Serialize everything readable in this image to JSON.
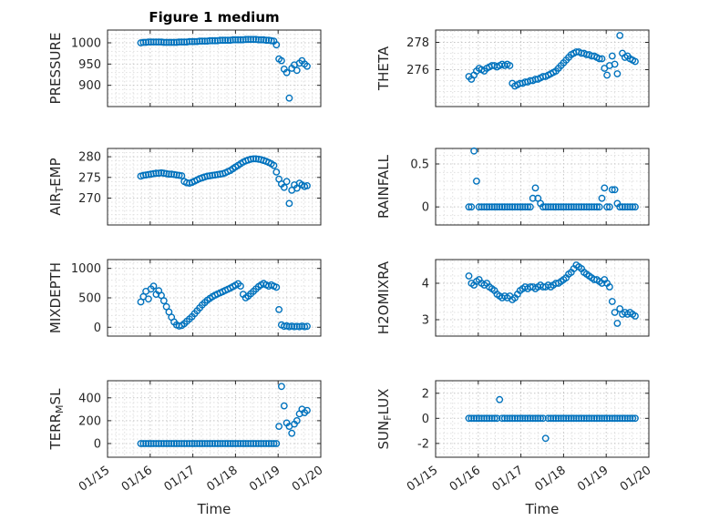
{
  "figure": {
    "title": "Figure 1 medium",
    "xlabel": "Time",
    "marker_color": "#0072BD",
    "axis_color": "#262626",
    "major_grid_color": "#c4c4c4",
    "minor_grid_color": "#e0e0e0",
    "xlim": [
      15,
      20
    ],
    "xticks": [
      15,
      16,
      17,
      18,
      19,
      20
    ],
    "xtick_labels": [
      "01/15",
      "01/16",
      "01/17",
      "01/18",
      "01/19",
      "01/20"
    ]
  },
  "chart_data": [
    {
      "name": "PRESSURE",
      "type": "scatter",
      "ylabel": [
        {
          "t": "PRESSURE"
        }
      ],
      "ylim": [
        850,
        1030
      ],
      "yticks": [
        900,
        950,
        1000
      ],
      "x": [
        15.78,
        15.84,
        15.9,
        15.96,
        16.02,
        16.08,
        16.14,
        16.2,
        16.26,
        16.32,
        16.38,
        16.44,
        16.5,
        16.56,
        16.62,
        16.68,
        16.74,
        16.8,
        16.86,
        16.92,
        16.98,
        17.04,
        17.1,
        17.16,
        17.22,
        17.28,
        17.34,
        17.4,
        17.46,
        17.52,
        17.58,
        17.64,
        17.7,
        17.76,
        17.82,
        17.88,
        17.94,
        18.0,
        18.06,
        18.12,
        18.18,
        18.24,
        18.3,
        18.36,
        18.42,
        18.48,
        18.54,
        18.6,
        18.66,
        18.72,
        18.78,
        18.84,
        18.9,
        18.96,
        19.02,
        19.08,
        19.14,
        19.2,
        19.26,
        19.32,
        19.38,
        19.44,
        19.5,
        19.56,
        19.62,
        19.68
      ],
      "y": [
        1000,
        1001,
        1001,
        1002,
        1002,
        1002,
        1002,
        1002,
        1002,
        1001,
        1001,
        1001,
        1001,
        1001,
        1001,
        1002,
        1002,
        1002,
        1002,
        1003,
        1003,
        1003,
        1003,
        1004,
        1004,
        1004,
        1004,
        1005,
        1005,
        1005,
        1005,
        1006,
        1006,
        1006,
        1006,
        1006,
        1007,
        1007,
        1007,
        1007,
        1007,
        1008,
        1008,
        1008,
        1008,
        1008,
        1007,
        1007,
        1007,
        1006,
        1006,
        1005,
        1004,
        995,
        962,
        958,
        938,
        930,
        870,
        940,
        948,
        935,
        952,
        958,
        950,
        945
      ]
    },
    {
      "name": "AIRTEMP",
      "type": "scatter",
      "ylabel": [
        {
          "t": "AIR"
        },
        {
          "t": "T",
          "sub": true
        },
        {
          "t": "EMP"
        }
      ],
      "ylim": [
        263.5,
        282
      ],
      "yticks": [
        270,
        275,
        280
      ],
      "x": [
        15.78,
        15.84,
        15.9,
        15.96,
        16.02,
        16.08,
        16.14,
        16.2,
        16.26,
        16.32,
        16.38,
        16.44,
        16.5,
        16.56,
        16.62,
        16.68,
        16.74,
        16.8,
        16.86,
        16.92,
        16.98,
        17.04,
        17.1,
        17.16,
        17.22,
        17.28,
        17.34,
        17.4,
        17.46,
        17.52,
        17.58,
        17.64,
        17.7,
        17.76,
        17.82,
        17.88,
        17.94,
        18.0,
        18.06,
        18.12,
        18.18,
        18.24,
        18.3,
        18.36,
        18.42,
        18.48,
        18.54,
        18.6,
        18.66,
        18.72,
        18.78,
        18.84,
        18.9,
        18.96,
        19.02,
        19.08,
        19.14,
        19.2,
        19.26,
        19.32,
        19.38,
        19.44,
        19.5,
        19.56,
        19.62,
        19.68
      ],
      "y": [
        275.3,
        275.5,
        275.6,
        275.7,
        275.8,
        275.9,
        276.0,
        276.0,
        276.1,
        276.0,
        275.9,
        275.8,
        275.8,
        275.7,
        275.6,
        275.5,
        275.4,
        274.0,
        273.7,
        273.6,
        273.8,
        274.1,
        274.4,
        274.7,
        274.9,
        275.1,
        275.3,
        275.4,
        275.5,
        275.6,
        275.7,
        275.8,
        275.9,
        276.1,
        276.4,
        276.7,
        277.1,
        277.5,
        277.9,
        278.3,
        278.7,
        279.0,
        279.2,
        279.4,
        279.5,
        279.5,
        279.4,
        279.3,
        279.1,
        278.9,
        278.6,
        278.3,
        277.9,
        276.3,
        274.6,
        273.4,
        272.6,
        274.0,
        268.7,
        271.9,
        273.2,
        272.4,
        273.6,
        273.2,
        272.8,
        273.0
      ]
    },
    {
      "name": "MIXDEPTH",
      "type": "scatter",
      "ylabel": [
        {
          "t": "MIXDEPTH"
        }
      ],
      "ylim": [
        -150,
        1150
      ],
      "yticks": [
        0,
        500,
        1000
      ],
      "x": [
        15.78,
        15.84,
        15.9,
        15.96,
        16.02,
        16.08,
        16.14,
        16.2,
        16.26,
        16.32,
        16.38,
        16.44,
        16.5,
        16.56,
        16.62,
        16.68,
        16.74,
        16.8,
        16.86,
        16.92,
        16.98,
        17.04,
        17.1,
        17.16,
        17.22,
        17.28,
        17.34,
        17.4,
        17.46,
        17.52,
        17.58,
        17.64,
        17.7,
        17.76,
        17.82,
        17.88,
        17.94,
        18.0,
        18.06,
        18.12,
        18.18,
        18.24,
        18.3,
        18.36,
        18.42,
        18.48,
        18.54,
        18.6,
        18.66,
        18.72,
        18.78,
        18.84,
        18.9,
        18.96,
        19.02,
        19.08,
        19.14,
        19.2,
        19.26,
        19.32,
        19.38,
        19.44,
        19.5,
        19.56,
        19.62,
        19.68
      ],
      "y": [
        430,
        520,
        610,
        480,
        650,
        700,
        560,
        620,
        540,
        450,
        350,
        260,
        170,
        90,
        40,
        20,
        30,
        60,
        100,
        140,
        180,
        230,
        280,
        330,
        380,
        420,
        460,
        490,
        520,
        545,
        565,
        585,
        605,
        625,
        645,
        665,
        690,
        715,
        740,
        700,
        560,
        500,
        530,
        570,
        610,
        650,
        690,
        720,
        745,
        720,
        700,
        720,
        700,
        680,
        300,
        40,
        15,
        25,
        10,
        20,
        10,
        15,
        10,
        20,
        10,
        15
      ]
    },
    {
      "name": "TERRMSL",
      "type": "scatter",
      "ylabel": [
        {
          "t": "TERR"
        },
        {
          "t": "M",
          "sub": true
        },
        {
          "t": "SL"
        }
      ],
      "ylim": [
        -120,
        550
      ],
      "yticks": [
        0,
        200,
        400
      ],
      "x": [
        15.78,
        15.84,
        15.9,
        15.96,
        16.02,
        16.08,
        16.14,
        16.2,
        16.26,
        16.32,
        16.38,
        16.44,
        16.5,
        16.56,
        16.62,
        16.68,
        16.74,
        16.8,
        16.86,
        16.92,
        16.98,
        17.04,
        17.1,
        17.16,
        17.22,
        17.28,
        17.34,
        17.4,
        17.46,
        17.52,
        17.58,
        17.64,
        17.7,
        17.76,
        17.82,
        17.88,
        17.94,
        18.0,
        18.06,
        18.12,
        18.18,
        18.24,
        18.3,
        18.36,
        18.42,
        18.48,
        18.54,
        18.6,
        18.66,
        18.72,
        18.78,
        18.84,
        18.9,
        18.96,
        19.02,
        19.08,
        19.14,
        19.2,
        19.26,
        19.32,
        19.38,
        19.44,
        19.5,
        19.56,
        19.62,
        19.68
      ],
      "y": [
        0,
        0,
        0,
        0,
        0,
        0,
        0,
        0,
        0,
        0,
        0,
        0,
        0,
        0,
        0,
        0,
        0,
        0,
        0,
        0,
        0,
        0,
        0,
        0,
        0,
        0,
        0,
        0,
        0,
        0,
        0,
        0,
        0,
        0,
        0,
        0,
        0,
        0,
        0,
        0,
        0,
        0,
        0,
        0,
        0,
        0,
        0,
        0,
        0,
        0,
        0,
        0,
        0,
        0,
        150,
        500,
        330,
        180,
        150,
        90,
        170,
        200,
        260,
        300,
        270,
        290
      ]
    },
    {
      "name": "THETA",
      "type": "scatter",
      "ylabel": [
        {
          "t": "THETA"
        }
      ],
      "ylim": [
        273.3,
        278.9
      ],
      "yticks": [
        276,
        278
      ],
      "x": [
        15.78,
        15.84,
        15.9,
        15.96,
        16.02,
        16.08,
        16.14,
        16.2,
        16.26,
        16.32,
        16.38,
        16.44,
        16.5,
        16.56,
        16.62,
        16.68,
        16.74,
        16.8,
        16.86,
        16.92,
        16.98,
        17.04,
        17.1,
        17.16,
        17.22,
        17.28,
        17.34,
        17.4,
        17.46,
        17.52,
        17.58,
        17.64,
        17.7,
        17.76,
        17.82,
        17.88,
        17.94,
        18.0,
        18.06,
        18.12,
        18.18,
        18.24,
        18.3,
        18.36,
        18.42,
        18.48,
        18.54,
        18.6,
        18.66,
        18.72,
        18.78,
        18.84,
        18.9,
        18.96,
        19.02,
        19.08,
        19.14,
        19.2,
        19.26,
        19.32,
        19.38,
        19.44,
        19.5,
        19.56,
        19.62,
        19.68
      ],
      "y": [
        275.5,
        275.3,
        275.6,
        275.9,
        276.1,
        276.0,
        275.9,
        276.1,
        276.2,
        276.3,
        276.3,
        276.2,
        276.3,
        276.4,
        276.3,
        276.4,
        276.3,
        275.0,
        274.8,
        274.9,
        275.0,
        275.0,
        275.1,
        275.1,
        275.2,
        275.2,
        275.3,
        275.3,
        275.4,
        275.5,
        275.5,
        275.6,
        275.7,
        275.8,
        275.9,
        276.1,
        276.3,
        276.5,
        276.7,
        276.9,
        277.1,
        277.2,
        277.3,
        277.3,
        277.2,
        277.2,
        277.1,
        277.1,
        277.0,
        277.0,
        276.9,
        276.8,
        276.8,
        276.1,
        275.6,
        276.3,
        277.0,
        276.4,
        275.7,
        278.5,
        277.2,
        276.9,
        277.0,
        276.8,
        276.7,
        276.6
      ]
    },
    {
      "name": "RAINFALL",
      "type": "scatter",
      "ylabel": [
        {
          "t": "RAINFALL"
        }
      ],
      "ylim": [
        -0.21,
        0.68
      ],
      "yticks": [
        0,
        0.5
      ],
      "x": [
        15.78,
        15.84,
        15.9,
        15.96,
        16.02,
        16.08,
        16.14,
        16.2,
        16.26,
        16.32,
        16.38,
        16.44,
        16.5,
        16.56,
        16.62,
        16.68,
        16.74,
        16.8,
        16.86,
        16.92,
        16.98,
        17.04,
        17.1,
        17.16,
        17.22,
        17.28,
        17.34,
        17.4,
        17.46,
        17.52,
        17.58,
        17.64,
        17.7,
        17.76,
        17.82,
        17.88,
        17.94,
        18.0,
        18.06,
        18.12,
        18.18,
        18.24,
        18.3,
        18.36,
        18.42,
        18.48,
        18.54,
        18.6,
        18.66,
        18.72,
        18.78,
        18.84,
        18.9,
        18.96,
        19.02,
        19.08,
        19.14,
        19.2,
        19.26,
        19.32,
        19.38,
        19.44,
        19.5,
        19.56,
        19.62,
        19.68
      ],
      "y": [
        0,
        0,
        0.65,
        0.3,
        0,
        0,
        0,
        0,
        0,
        0,
        0,
        0,
        0,
        0,
        0,
        0,
        0,
        0,
        0,
        0,
        0,
        0,
        0,
        0,
        0,
        0.1,
        0.22,
        0.1,
        0.04,
        0,
        0,
        0,
        0,
        0,
        0,
        0,
        0,
        0,
        0,
        0,
        0,
        0,
        0,
        0,
        0,
        0,
        0,
        0,
        0,
        0,
        0,
        0,
        0.1,
        0.22,
        0,
        0,
        0.2,
        0.2,
        0.04,
        0,
        0,
        0,
        0,
        0,
        0,
        0
      ]
    },
    {
      "name": "H2OMIXRA",
      "type": "scatter",
      "ylabel": [
        {
          "t": "H2OMIXRA"
        }
      ],
      "ylim": [
        2.55,
        4.65
      ],
      "yticks": [
        3,
        4
      ],
      "x": [
        15.78,
        15.84,
        15.9,
        15.96,
        16.02,
        16.08,
        16.14,
        16.2,
        16.26,
        16.32,
        16.38,
        16.44,
        16.5,
        16.56,
        16.62,
        16.68,
        16.74,
        16.8,
        16.86,
        16.92,
        16.98,
        17.04,
        17.1,
        17.16,
        17.22,
        17.28,
        17.34,
        17.4,
        17.46,
        17.52,
        17.58,
        17.64,
        17.7,
        17.76,
        17.82,
        17.88,
        17.94,
        18.0,
        18.06,
        18.12,
        18.18,
        18.24,
        18.3,
        18.36,
        18.42,
        18.48,
        18.54,
        18.6,
        18.66,
        18.72,
        18.78,
        18.84,
        18.9,
        18.96,
        19.02,
        19.08,
        19.14,
        19.2,
        19.26,
        19.32,
        19.38,
        19.44,
        19.5,
        19.56,
        19.62,
        19.68
      ],
      "y": [
        4.2,
        4.0,
        3.95,
        4.05,
        4.1,
        4.0,
        3.95,
        4.0,
        3.9,
        3.85,
        3.8,
        3.7,
        3.65,
        3.6,
        3.65,
        3.6,
        3.65,
        3.55,
        3.6,
        3.7,
        3.8,
        3.85,
        3.9,
        3.85,
        3.9,
        3.9,
        3.85,
        3.9,
        3.95,
        3.9,
        3.9,
        3.95,
        3.9,
        3.95,
        4.0,
        4.0,
        4.05,
        4.1,
        4.15,
        4.25,
        4.3,
        4.4,
        4.5,
        4.45,
        4.4,
        4.3,
        4.25,
        4.2,
        4.15,
        4.1,
        4.1,
        4.05,
        4.0,
        4.1,
        4.0,
        3.9,
        3.5,
        3.2,
        2.9,
        3.3,
        3.15,
        3.2,
        3.15,
        3.2,
        3.15,
        3.1
      ]
    },
    {
      "name": "SUNFLUX",
      "type": "scatter",
      "ylabel": [
        {
          "t": "SUN"
        },
        {
          "t": "F",
          "sub": true
        },
        {
          "t": "LUX"
        }
      ],
      "ylim": [
        -3.1,
        3.0
      ],
      "yticks": [
        -2,
        0,
        2
      ],
      "x": [
        15.78,
        15.84,
        15.9,
        15.96,
        16.02,
        16.08,
        16.14,
        16.2,
        16.26,
        16.32,
        16.38,
        16.44,
        16.5,
        16.56,
        16.62,
        16.68,
        16.74,
        16.8,
        16.86,
        16.92,
        16.98,
        17.04,
        17.1,
        17.16,
        17.22,
        17.28,
        17.34,
        17.4,
        17.46,
        17.52,
        17.58,
        17.64,
        17.7,
        17.76,
        17.82,
        17.88,
        17.94,
        18.0,
        18.06,
        18.12,
        18.18,
        18.24,
        18.3,
        18.36,
        18.42,
        18.48,
        18.54,
        18.6,
        18.66,
        18.72,
        18.78,
        18.84,
        18.9,
        18.96,
        19.02,
        19.08,
        19.14,
        19.2,
        19.26,
        19.32,
        19.38,
        19.44,
        19.5,
        19.56,
        19.62,
        19.68
      ],
      "y": [
        0,
        0,
        0,
        0,
        0,
        0,
        0,
        0,
        0,
        0,
        0,
        0,
        1.5,
        0,
        0,
        0,
        0,
        0,
        0,
        0,
        0,
        0,
        0,
        0,
        0,
        0,
        0,
        0,
        0,
        0,
        -1.6,
        0,
        0,
        0,
        0,
        0,
        0,
        0,
        0,
        0,
        0,
        0,
        0,
        0,
        0,
        0,
        0,
        0,
        0,
        0,
        0,
        0,
        0,
        0,
        0,
        0,
        0,
        0,
        0,
        0,
        0,
        0,
        0,
        0,
        0,
        0
      ]
    }
  ]
}
